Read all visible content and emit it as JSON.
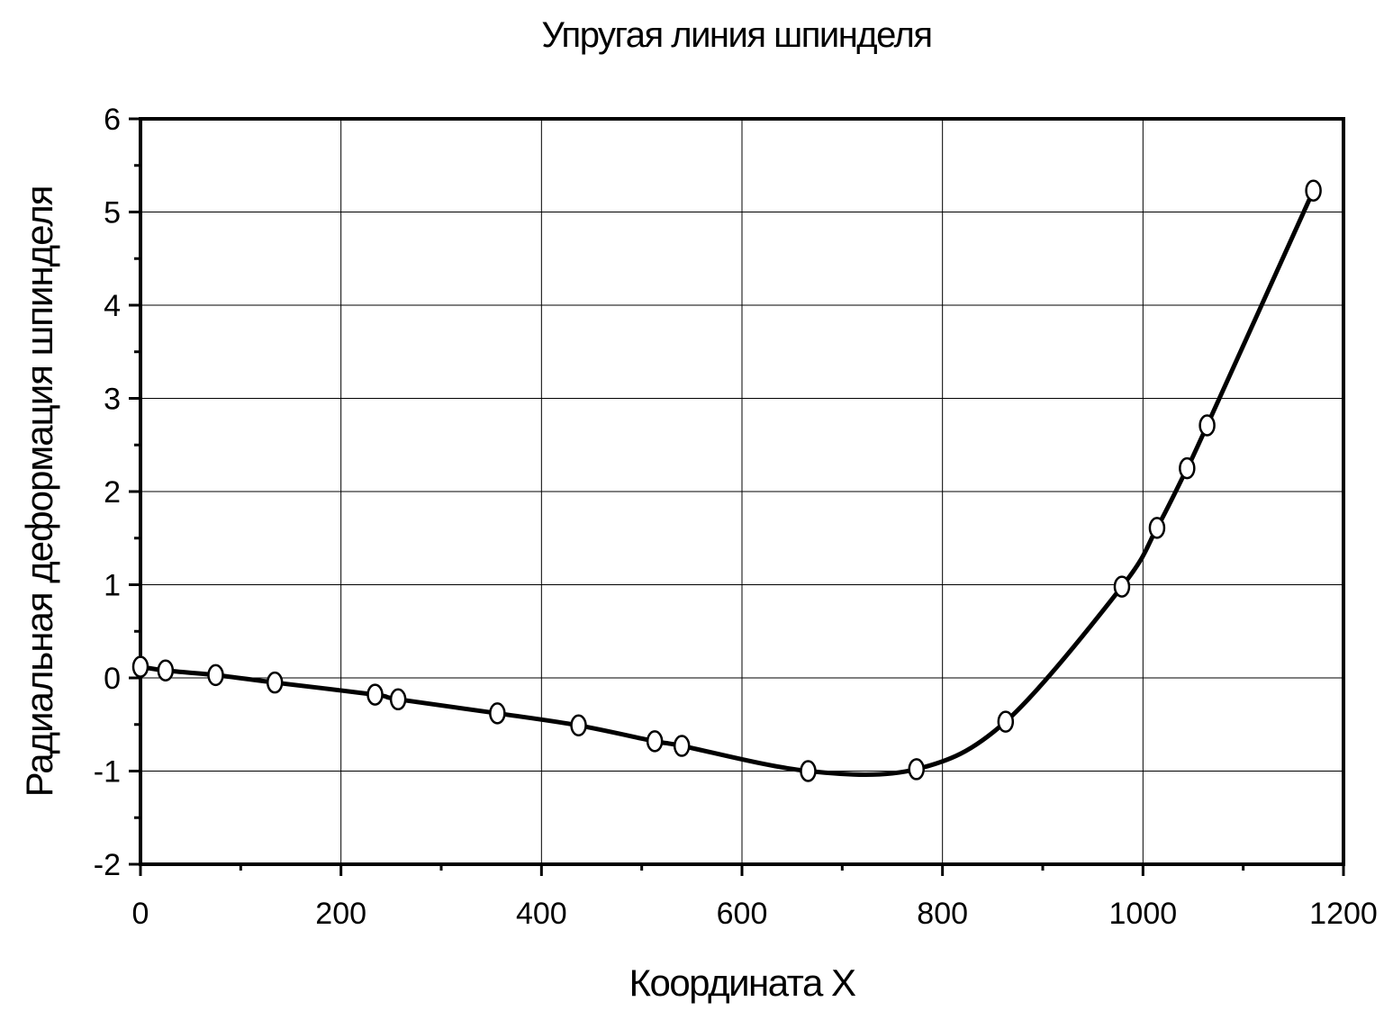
{
  "chart_data": {
    "type": "line",
    "title": "Упругая линия шпинделя",
    "x_label": "Координата X",
    "y_label": "Радиальная деформация шпинделя",
    "x": [
      0,
      25,
      75,
      134,
      234,
      257,
      356,
      437,
      513,
      540,
      666,
      774,
      863,
      979,
      1014,
      1044,
      1064,
      1170
    ],
    "series": [
      {
        "color": "#000000",
        "marker_fill": "#ffffff",
        "values": [
          0.12,
          0.08,
          0.03,
          -0.05,
          -0.18,
          -0.23,
          -0.38,
          -0.51,
          -0.68,
          -0.73,
          -1.0,
          -0.98,
          -0.47,
          0.98,
          1.61,
          2.25,
          2.71,
          5.23
        ]
      }
    ],
    "xlim": [
      0,
      1200
    ],
    "xticks": [
      0,
      200,
      400,
      600,
      800,
      1000,
      1200
    ],
    "ylim": [
      -2,
      6
    ],
    "yticks": [
      -2,
      -1,
      0,
      1,
      2,
      3,
      4,
      5,
      6
    ],
    "grid": true
  }
}
